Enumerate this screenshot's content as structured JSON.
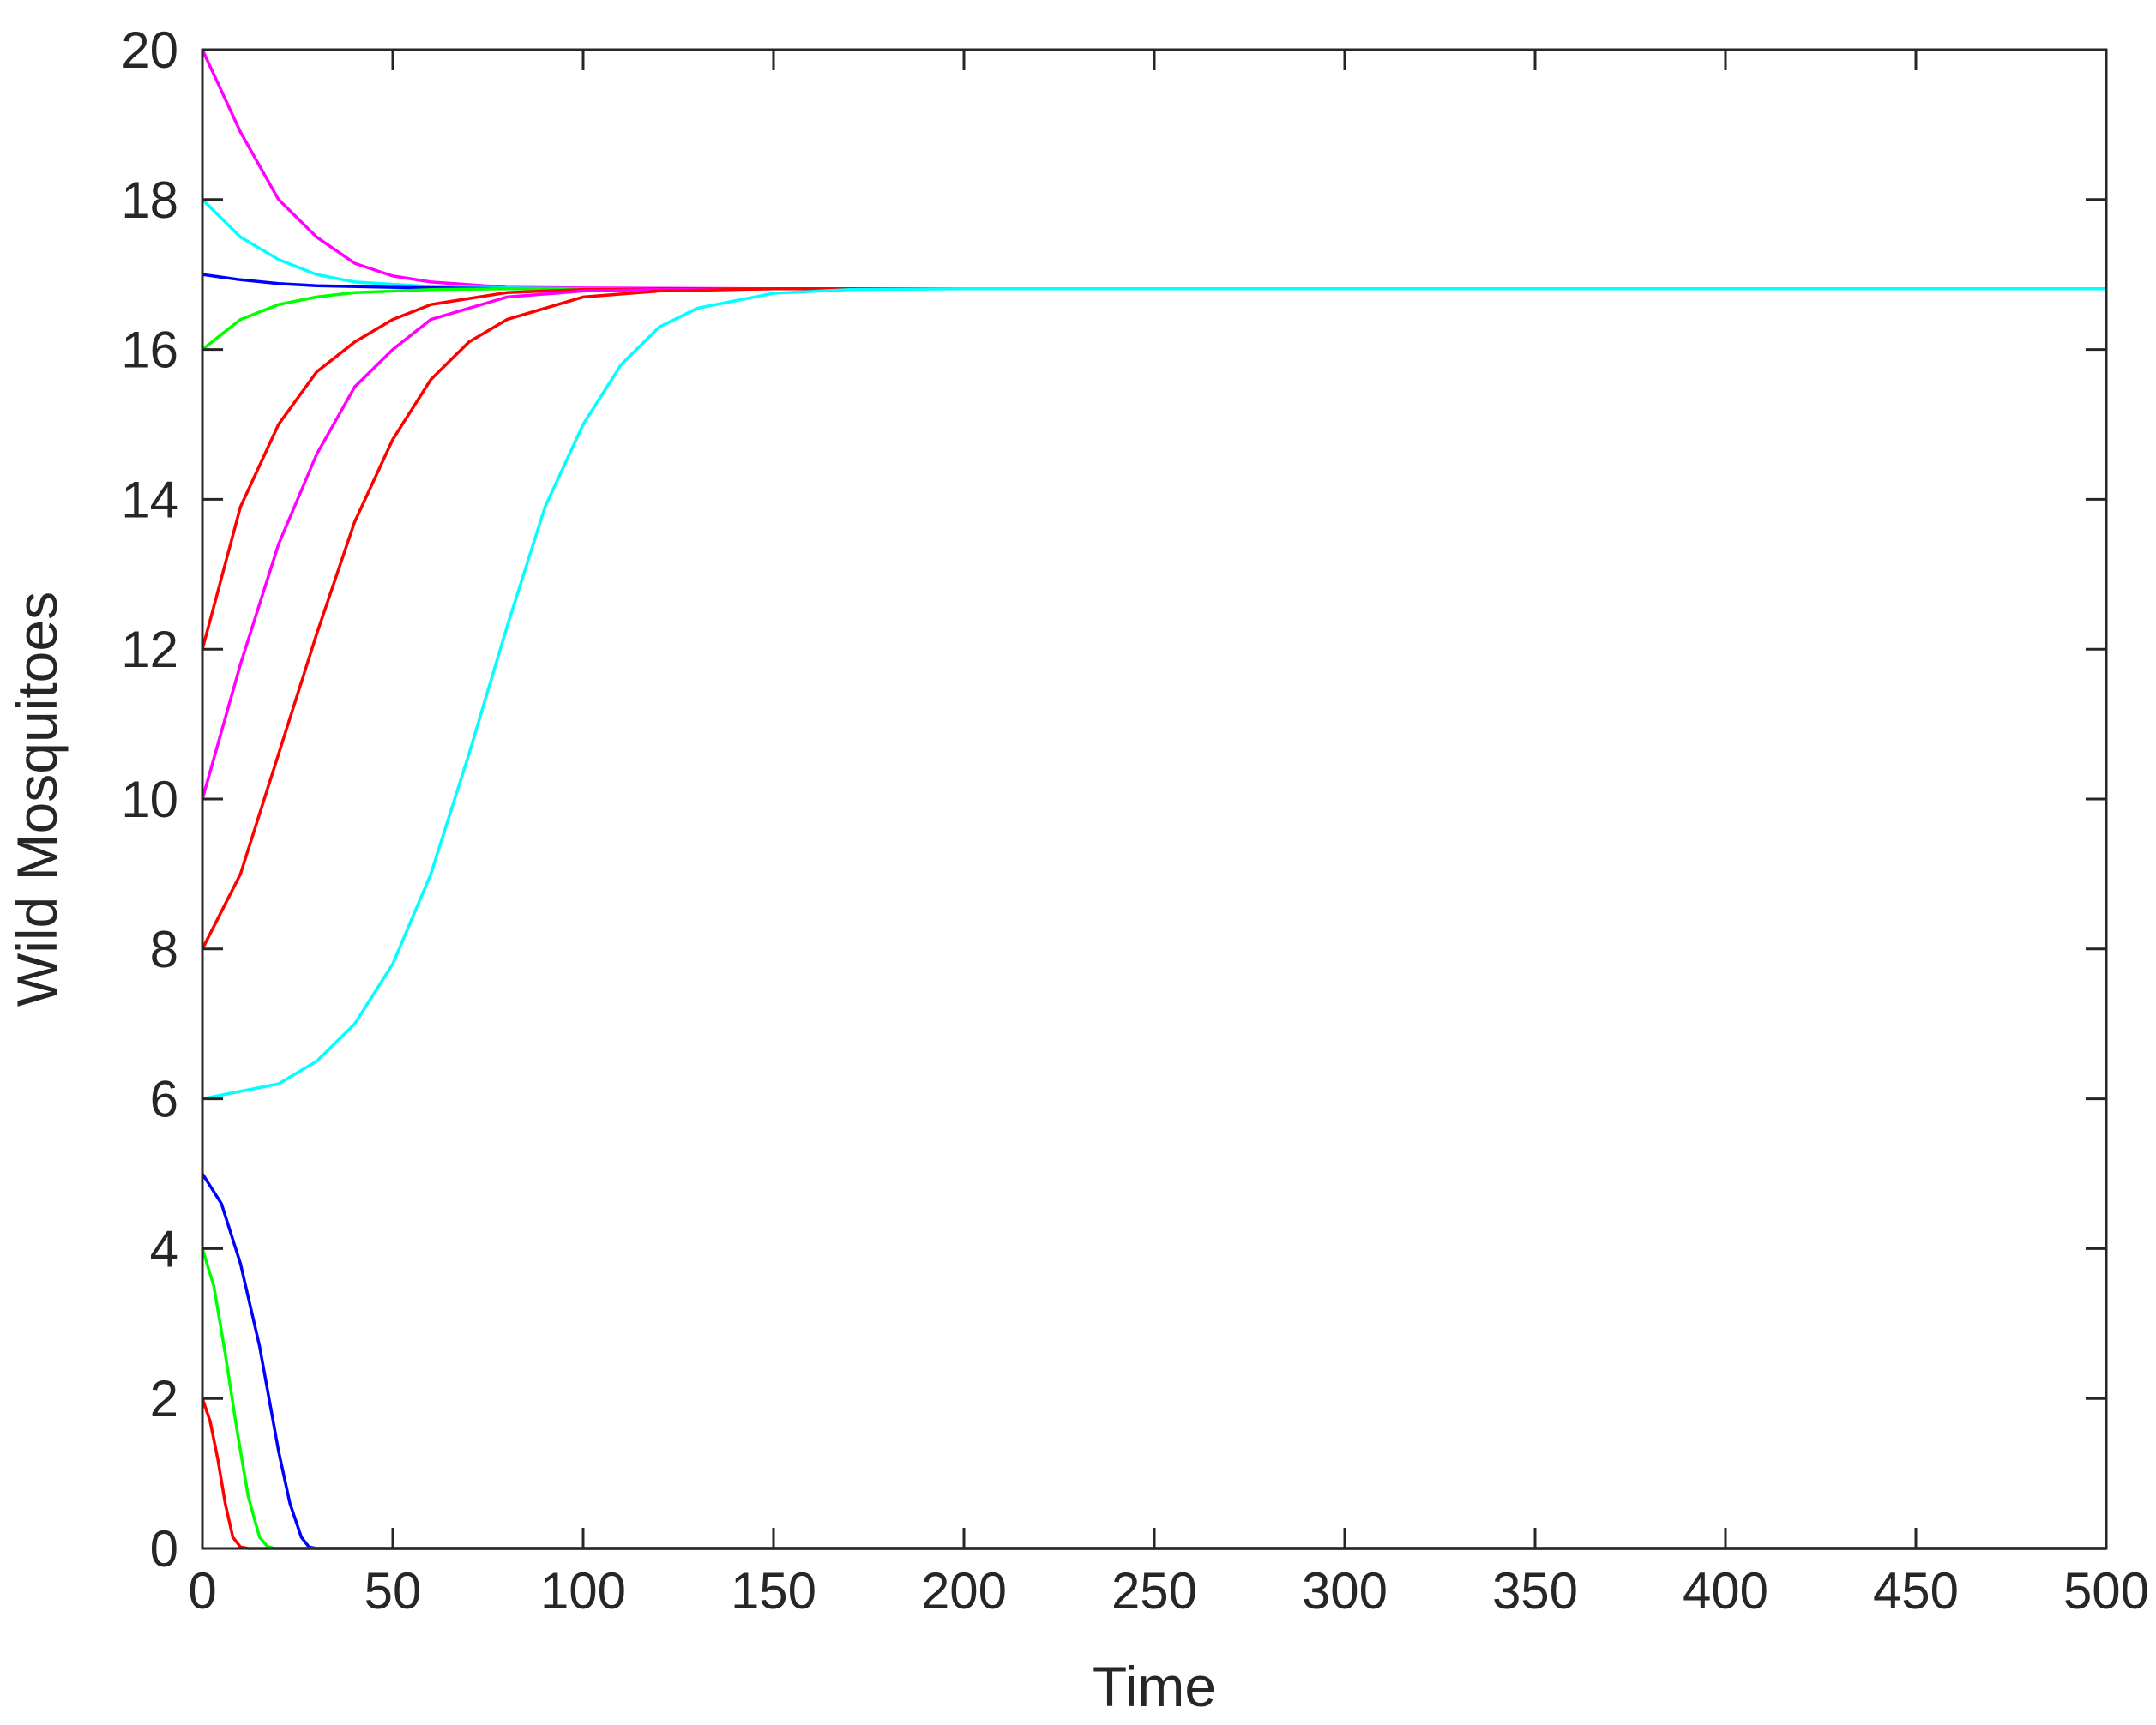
{
  "chart_data": {
    "type": "line",
    "title": "",
    "xlabel": "Time",
    "ylabel": "Wild Mosquitoes",
    "xlim": [
      0,
      500
    ],
    "ylim": [
      0,
      20
    ],
    "xticks": [
      0,
      50,
      100,
      150,
      200,
      250,
      300,
      350,
      400,
      450,
      500
    ],
    "yticks": [
      0,
      2,
      4,
      6,
      8,
      10,
      12,
      14,
      16,
      18,
      20
    ],
    "grid": false,
    "legend": "none",
    "series": [
      {
        "color": "#ff00ff",
        "x": [
          0,
          10,
          20,
          30,
          40,
          50,
          60,
          80,
          100,
          150,
          500
        ],
        "y": [
          20,
          18.9,
          18.0,
          17.5,
          17.15,
          16.98,
          16.9,
          16.83,
          16.82,
          16.81,
          16.81
        ]
      },
      {
        "color": "#00ffff",
        "x": [
          0,
          10,
          20,
          30,
          40,
          60,
          80,
          100,
          150,
          500
        ],
        "y": [
          18,
          17.5,
          17.2,
          17.0,
          16.9,
          16.84,
          16.82,
          16.81,
          16.81,
          16.81
        ]
      },
      {
        "color": "#0000ff",
        "x": [
          0,
          10,
          20,
          30,
          50,
          80,
          500
        ],
        "y": [
          17,
          16.93,
          16.88,
          16.85,
          16.83,
          16.81,
          16.81
        ]
      },
      {
        "color": "#00ff00",
        "x": [
          0,
          10,
          20,
          30,
          40,
          60,
          80,
          500
        ],
        "y": [
          16,
          16.4,
          16.6,
          16.7,
          16.76,
          16.8,
          16.81,
          16.81
        ]
      },
      {
        "color": "#ff0000",
        "x": [
          0,
          10,
          20,
          30,
          40,
          50,
          60,
          80,
          100,
          120,
          150,
          500
        ],
        "y": [
          12,
          13.9,
          15.0,
          15.7,
          16.1,
          16.4,
          16.6,
          16.76,
          16.8,
          16.81,
          16.81,
          16.81
        ]
      },
      {
        "color": "#ff00ff",
        "x": [
          0,
          10,
          20,
          30,
          40,
          50,
          60,
          80,
          100,
          120,
          150,
          500
        ],
        "y": [
          10,
          11.8,
          13.4,
          14.6,
          15.5,
          16.0,
          16.4,
          16.7,
          16.78,
          16.8,
          16.81,
          16.81
        ]
      },
      {
        "color": "#ff0000",
        "x": [
          0,
          10,
          20,
          30,
          40,
          50,
          60,
          70,
          80,
          100,
          120,
          150,
          500
        ],
        "y": [
          8,
          9.0,
          10.6,
          12.2,
          13.7,
          14.8,
          15.6,
          16.1,
          16.4,
          16.7,
          16.78,
          16.81,
          16.81
        ]
      },
      {
        "color": "#00ffff",
        "x": [
          0,
          20,
          30,
          40,
          50,
          60,
          70,
          80,
          90,
          100,
          110,
          120,
          130,
          150,
          170,
          200,
          500
        ],
        "y": [
          6,
          6.2,
          6.5,
          7.0,
          7.8,
          9.0,
          10.6,
          12.3,
          13.9,
          15.0,
          15.8,
          16.3,
          16.55,
          16.75,
          16.8,
          16.81,
          16.81
        ]
      },
      {
        "color": "#0000ff",
        "x": [
          0,
          5,
          10,
          15,
          20,
          23,
          26,
          28,
          30,
          500
        ],
        "y": [
          5,
          4.6,
          3.8,
          2.7,
          1.3,
          0.6,
          0.15,
          0.02,
          0,
          0
        ]
      },
      {
        "color": "#00ff00",
        "x": [
          0,
          3,
          6,
          9,
          12,
          15,
          17,
          19,
          500
        ],
        "y": [
          4,
          3.5,
          2.6,
          1.6,
          0.7,
          0.15,
          0.03,
          0,
          0
        ]
      },
      {
        "color": "#ff0000",
        "x": [
          0,
          2,
          4,
          6,
          8,
          10,
          12,
          500
        ],
        "y": [
          2,
          1.7,
          1.2,
          0.6,
          0.15,
          0.02,
          0,
          0
        ]
      }
    ]
  }
}
